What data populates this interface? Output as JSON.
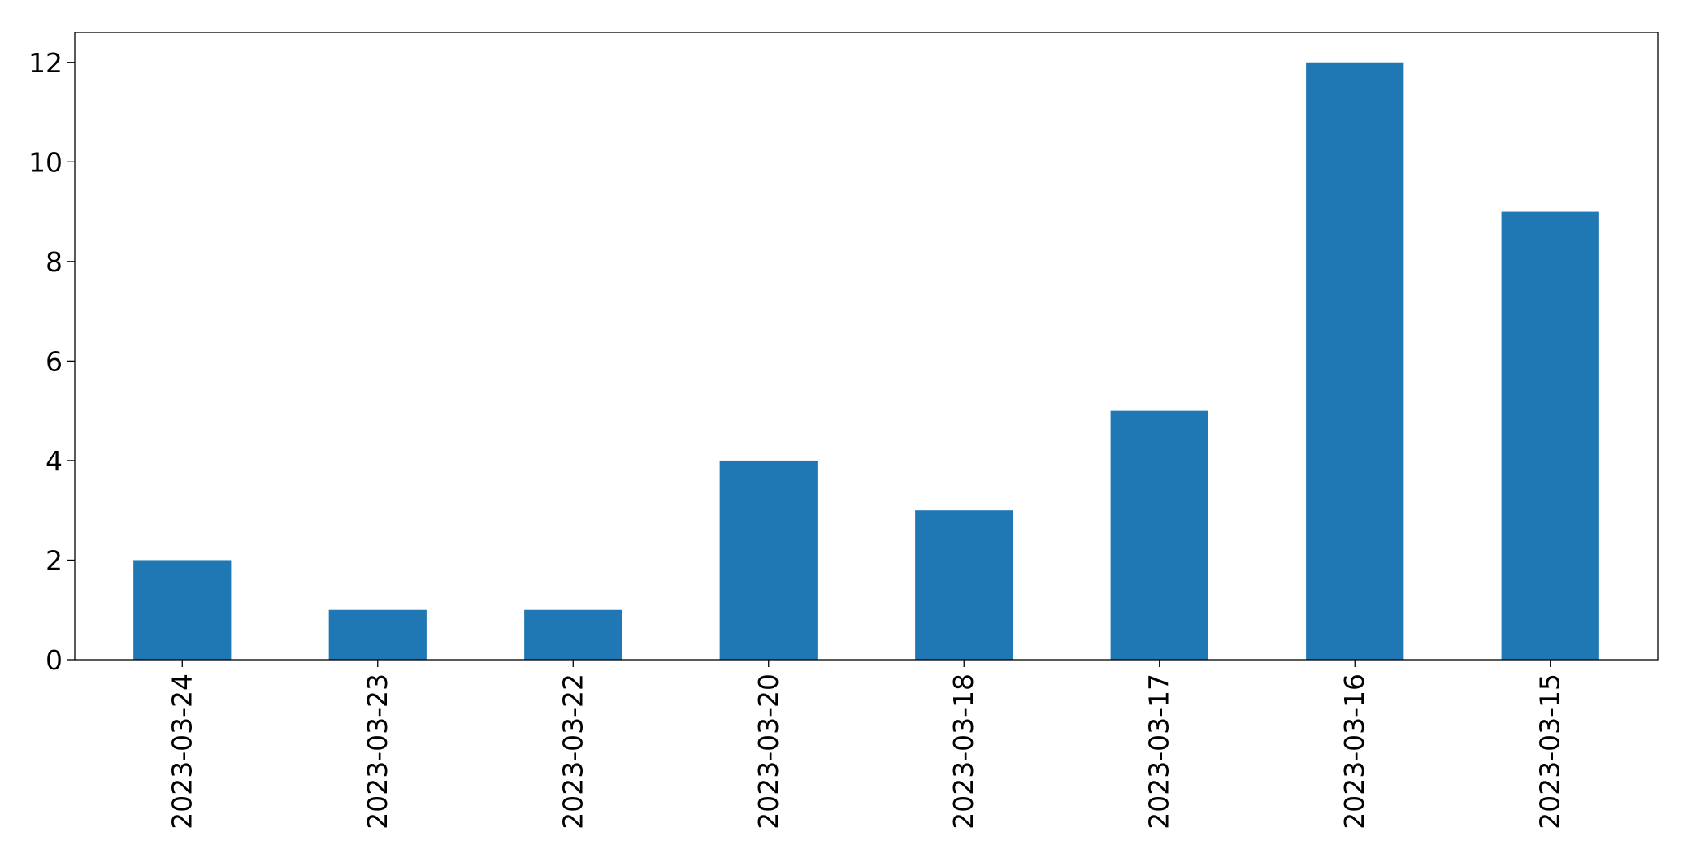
{
  "chart_data": {
    "type": "bar",
    "title": "",
    "xlabel": "",
    "ylabel": "",
    "categories": [
      "2023-03-24",
      "2023-03-23",
      "2023-03-22",
      "2023-03-20",
      "2023-03-18",
      "2023-03-17",
      "2023-03-16",
      "2023-03-15"
    ],
    "values": [
      2,
      1,
      1,
      4,
      3,
      5,
      12,
      9
    ],
    "ylim": [
      0,
      12.6
    ],
    "yticks": [
      0,
      2,
      4,
      6,
      8,
      10,
      12
    ],
    "grid": false,
    "legend": "none",
    "bar_color": "#1f77b4"
  }
}
